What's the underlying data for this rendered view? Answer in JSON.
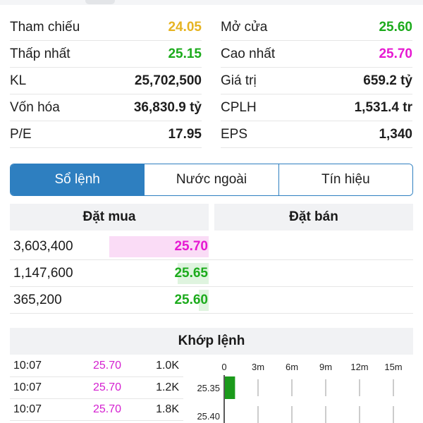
{
  "stats": [
    {
      "left": {
        "label": "Tham chiếu",
        "value": "24.05",
        "color": "yellow"
      },
      "right": {
        "label": "Mở cửa",
        "value": "25.60",
        "color": "green"
      }
    },
    {
      "left": {
        "label": "Thấp nhất",
        "value": "25.15",
        "color": "green"
      },
      "right": {
        "label": "Cao nhất",
        "value": "25.70",
        "color": "pink"
      }
    },
    {
      "left": {
        "label": "KL",
        "value": "25,702,500",
        "color": ""
      },
      "right": {
        "label": "Giá trị",
        "value": "659.2 tỷ",
        "color": ""
      }
    },
    {
      "left": {
        "label": "Vốn hóa",
        "value": "36,830.9 tỷ",
        "color": ""
      },
      "right": {
        "label": "CPLH",
        "value": "1,531.4 tr",
        "color": ""
      }
    },
    {
      "left": {
        "label": "P/E",
        "value": "17.95",
        "color": ""
      },
      "right": {
        "label": "EPS",
        "value": "1,340",
        "color": ""
      }
    }
  ],
  "tabs": [
    {
      "label": "Sổ lệnh",
      "active": true
    },
    {
      "label": "Nước ngoài",
      "active": false
    },
    {
      "label": "Tín hiệu",
      "active": false
    }
  ],
  "orderbook": {
    "buy_header": "Đặt mua",
    "sell_header": "Đặt bán",
    "buy": [
      {
        "volume": "3,603,400",
        "price": "25.70",
        "color": "pink",
        "bar_fraction": 0.5
      },
      {
        "volume": "1,147,600",
        "price": "25.65",
        "color": "green",
        "bar_fraction": 0.16
      },
      {
        "volume": "365,200",
        "price": "25.60",
        "color": "green",
        "bar_fraction": 0.05
      }
    ]
  },
  "match": {
    "header": "Khớp lệnh",
    "trades": [
      {
        "time": "10:07",
        "price": "25.70",
        "volume": "1.0K"
      },
      {
        "time": "10:07",
        "price": "25.70",
        "volume": "1.2K"
      },
      {
        "time": "10:07",
        "price": "25.70",
        "volume": "1.8K"
      }
    ],
    "volume_chart": {
      "x_ticks": [
        "0",
        "3m",
        "6m",
        "9m",
        "12m",
        "15m"
      ],
      "price_levels": [
        "25.35",
        "25.40"
      ],
      "bars": [
        {
          "price": "25.35",
          "value_m": 0.9
        }
      ]
    }
  },
  "colors": {
    "yellow": "#e6b422",
    "green": "#1cab1c",
    "pink": "#e619d2",
    "accent": "#2e7fc0"
  }
}
